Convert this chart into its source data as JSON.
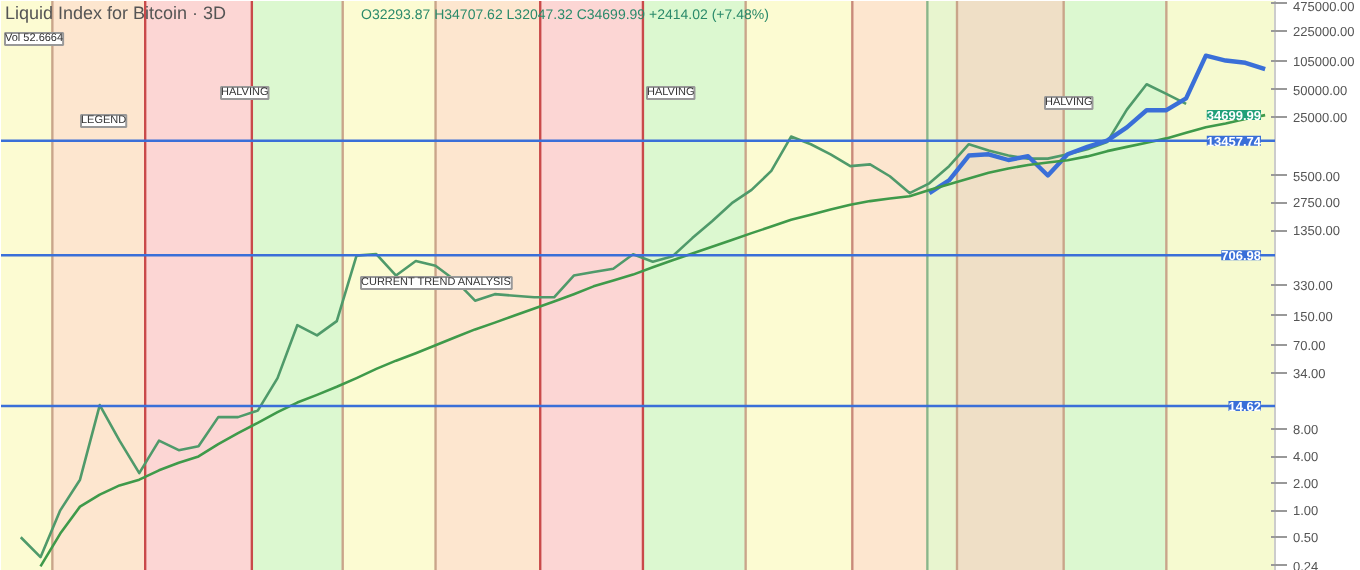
{
  "chart_data": {
    "type": "line",
    "title": "Liquid Index for Bitcoin · 3D",
    "subtitle": "O32293.87 H34707.62 L32047.32 C34699.99 +2414.02 (+7.48%)",
    "log": "y",
    "ylim": [
      0.21,
      490000
    ],
    "tick_labels": "y",
    "line_style": "solid",
    "marker": "none",
    "categories": [
      null,
      null,
      null,
      null,
      null,
      null,
      null,
      null,
      null,
      null,
      null,
      null,
      null,
      null,
      null,
      null,
      null,
      null,
      null,
      null,
      null,
      null,
      null,
      null,
      null,
      null,
      null,
      null,
      null,
      null,
      null,
      null,
      null,
      null,
      null,
      null,
      null,
      null,
      null,
      null,
      null,
      null,
      null,
      null,
      null,
      null,
      null,
      null,
      null,
      null,
      null,
      null,
      null,
      null,
      null,
      null,
      null,
      null,
      null,
      null,
      null,
      null,
      null,
      null,
      null
    ],
    "yticks": [
      {
        "value": 0.24,
        "label": "0.24"
      },
      {
        "value": 0.5,
        "label": "0.50"
      },
      {
        "value": 1,
        "label": "1.00"
      },
      {
        "value": 2,
        "label": "2.00"
      },
      {
        "value": 4,
        "label": "4.00"
      },
      {
        "value": 8,
        "label": "8.00"
      },
      {
        "value": 34,
        "label": "34.00"
      },
      {
        "value": 70,
        "label": "70.00"
      },
      {
        "value": 150,
        "label": "150.00"
      },
      {
        "value": 330,
        "label": "330.00"
      },
      {
        "value": 1350,
        "label": "1350.00"
      },
      {
        "value": 2750,
        "label": "2750.00"
      },
      {
        "value": 5500,
        "label": "5500.00"
      },
      {
        "value": 25000,
        "label": "25000.00"
      },
      {
        "value": 50000,
        "label": "50000.00"
      },
      {
        "value": 105000,
        "label": "105000.00"
      },
      {
        "value": 225000,
        "label": "225000.00"
      },
      {
        "value": 475000,
        "label": "475000.00"
      }
    ],
    "series": [
      {
        "color": "#4f9a6a",
        "values": [
          null,
          0.5,
          0.3,
          1.0,
          2.2,
          15,
          6,
          2.6,
          6,
          4.7,
          5.2,
          11,
          11,
          13,
          30,
          117,
          90,
          130,
          700,
          730,
          420,
          610,
          540,
          370,
          220,
          260,
          250,
          240,
          240,
          420,
          460,
          500,
          725,
          600,
          690,
          1100,
          1700,
          2700,
          3800,
          6200,
          15000,
          12300,
          9500,
          7000,
          7330,
          5400,
          3500,
          4500,
          7000,
          12300,
          10500,
          9200,
          8500,
          8500,
          9500,
          10800,
          13000,
          30000,
          57500,
          45000,
          34700,
          null,
          null,
          null,
          null
        ]
      },
      {
        "color": "#3a6fd8",
        "values": [
          null,
          null,
          null,
          null,
          null,
          null,
          null,
          null,
          null,
          null,
          null,
          null,
          null,
          null,
          null,
          null,
          null,
          null,
          null,
          null,
          null,
          null,
          null,
          null,
          null,
          null,
          null,
          null,
          null,
          null,
          null,
          null,
          null,
          null,
          null,
          null,
          null,
          null,
          null,
          null,
          null,
          null,
          null,
          null,
          null,
          null,
          null,
          3500,
          4870,
          9200,
          9500,
          8200,
          9030,
          5500,
          9500,
          11500,
          13500,
          19000,
          29500,
          29500,
          40000,
          120000,
          106000,
          100000,
          85000
        ]
      },
      {
        "color": "#3f9a4a",
        "values": [
          null,
          null,
          0.237,
          0.55,
          1.1,
          1.5,
          1.9,
          2.2,
          2.8,
          3.4,
          4,
          5.5,
          7.3,
          9.5,
          12.5,
          16,
          19.5,
          24,
          30,
          38,
          47,
          57,
          70,
          86,
          105,
          125,
          150,
          180,
          215,
          260,
          318,
          370,
          430,
          520,
          622,
          740,
          880,
          1050,
          1250,
          1480,
          1760,
          2000,
          2300,
          2600,
          2850,
          3050,
          3230,
          3800,
          4400,
          5100,
          5900,
          6600,
          7200,
          7700,
          8140,
          9000,
          10300,
          11500,
          12800,
          14300,
          16500,
          19000,
          21000,
          23500,
          26000
        ]
      }
    ],
    "ref_lines": [
      {
        "axis": "y",
        "value": 14.62,
        "label": "14.62",
        "color": "#3a6fd8"
      },
      {
        "axis": "y",
        "value": 706.98,
        "label": "706.98",
        "color": "#3a6fd8"
      },
      {
        "axis": "y",
        "value": 13457.74,
        "label": "13457.74",
        "color": "#3a6fd8"
      }
    ],
    "annotations": [
      "Vol 52.6664",
      "34699.99",
      "HALVING",
      "HALVING",
      "HALVING",
      "LEGEND",
      "CURRENT TREND ANALYSIS"
    ]
  }
}
